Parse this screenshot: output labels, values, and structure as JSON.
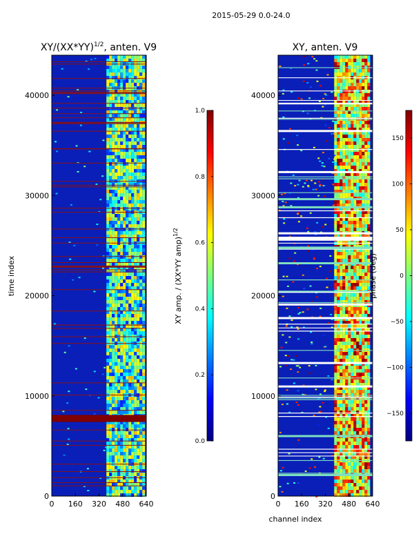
{
  "figure": {
    "suptitle": "2015-05-29 0.0-24.0"
  },
  "colors": {
    "jet": [
      "#00007f",
      "#0000ff",
      "#007fff",
      "#00ffff",
      "#7fff7f",
      "#ffff00",
      "#ff7f00",
      "#ff0000",
      "#7f0000"
    ],
    "background": "#0a1fb8",
    "separator": "#8b1010",
    "white_gap": "#ffffff",
    "teal_band": "#7fe0c0"
  },
  "chart_data": [
    {
      "type": "heatmap",
      "title": "XY/(XX*YY)",
      "title_superscript": "1/2",
      "title_suffix": ", anten. V9",
      "xlabel": "",
      "ylabel": "time index",
      "xlim": [
        0,
        640
      ],
      "ylim": [
        0,
        44000
      ],
      "xticks": [
        0,
        160,
        320,
        480,
        640
      ],
      "yticks": [
        0,
        10000,
        20000,
        30000,
        40000
      ],
      "bright_channel_band": [
        370,
        620
      ],
      "saturated_time_band": [
        7400,
        8100
      ],
      "colorbar": {
        "label": "XY amp. / (XX*YY amp)",
        "label_superscript": "1/2",
        "range": [
          0.0,
          1.0
        ],
        "ticks": [
          0.0,
          0.2,
          0.4,
          0.6,
          0.8,
          1.0
        ],
        "tick_labels": [
          "0.0",
          "0.2",
          "0.4",
          "0.6",
          "0.8",
          "1.0"
        ]
      }
    },
    {
      "type": "heatmap",
      "title": "XY, anten. V9",
      "xlabel": "channel index",
      "ylabel": "",
      "xlim": [
        0,
        640
      ],
      "ylim": [
        0,
        44000
      ],
      "xticks": [
        0,
        160,
        320,
        480,
        640
      ],
      "yticks": [
        0,
        10000,
        20000,
        30000,
        40000
      ],
      "bright_channel_band": [
        380,
        620
      ],
      "colorbar": {
        "label": "phase (deg)",
        "range": [
          -180,
          180
        ],
        "ticks": [
          -150,
          -100,
          -50,
          0,
          50,
          100,
          150
        ],
        "tick_labels": [
          "−150",
          "−100",
          "−50",
          "0",
          "50",
          "100",
          "150"
        ]
      }
    }
  ]
}
